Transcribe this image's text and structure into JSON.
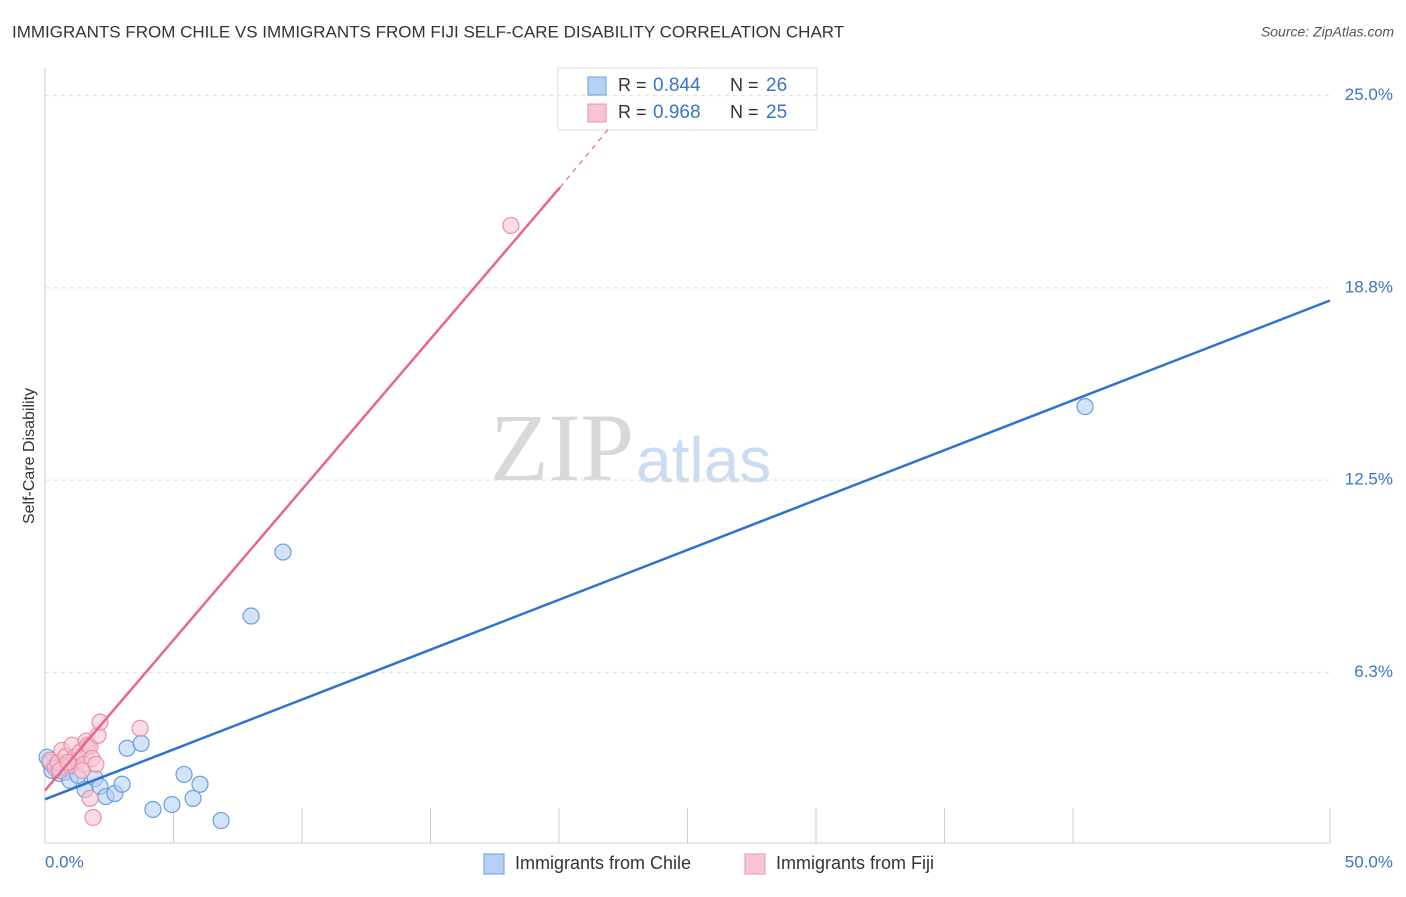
{
  "chart_data": {
    "type": "scatter",
    "title": "IMMIGRANTS FROM CHILE VS IMMIGRANTS FROM FIJI SELF-CARE DISABILITY CORRELATION CHART",
    "source": "Source: ZipAtlas.com",
    "y_label": "Self-Care Disability",
    "watermark": [
      "ZIP",
      "atlas"
    ],
    "xlim": [
      0,
      50
    ],
    "ylim": [
      0.7,
      25.9
    ],
    "xticks": [
      {
        "value": 0,
        "label": "0.0%"
      },
      {
        "value": 5,
        "label": null
      },
      {
        "value": 10,
        "label": null
      },
      {
        "value": 15,
        "label": null
      },
      {
        "value": 20,
        "label": null
      },
      {
        "value": 25,
        "label": null
      },
      {
        "value": 30,
        "label": null
      },
      {
        "value": 35,
        "label": null
      },
      {
        "value": 40,
        "label": null
      },
      {
        "value": 50,
        "label": "50.0%"
      }
    ],
    "yticks": [
      {
        "value": 6.25,
        "label": "6.3%"
      },
      {
        "value": 12.5,
        "label": "12.5%"
      },
      {
        "value": 18.75,
        "label": "18.8%"
      },
      {
        "value": 25,
        "label": "25.0%"
      }
    ],
    "grid": true,
    "legend_labels": [
      "R =",
      "N ="
    ],
    "series": [
      {
        "name": "Immigrants from Chile",
        "color": "#6a9ee0",
        "fill": "#b5d0f3",
        "line_color": "#2f72d0",
        "r": "0.844",
        "n": "26",
        "x": [
          0.08,
          0.27,
          0.39,
          0.58,
          0.78,
          0.97,
          1.28,
          1.56,
          1.95,
          2.14,
          2.37,
          2.72,
          3.0,
          3.19,
          3.74,
          4.2,
          4.94,
          5.41,
          5.76,
          6.03,
          6.85,
          8.02,
          9.26,
          40.47,
          0.19,
          0.51
        ],
        "values": [
          3.49,
          3.06,
          3.22,
          2.96,
          3.0,
          2.74,
          2.9,
          2.44,
          2.8,
          2.54,
          2.21,
          2.31,
          2.61,
          3.78,
          3.94,
          1.79,
          1.95,
          2.93,
          2.15,
          2.61,
          1.43,
          8.08,
          10.16,
          14.89,
          3.32,
          3.13
        ],
        "trend": {
          "x": [
            0,
            50
          ],
          "y": [
            2.12,
            18.34
          ]
        }
      },
      {
        "name": "Immigrants from Fiji",
        "color": "#e890aa",
        "fill": "#f8c3d2",
        "line_color": "#e8668e",
        "r": "0.968",
        "n": "25",
        "x": [
          0.19,
          0.39,
          0.51,
          0.66,
          0.82,
          0.97,
          1.05,
          1.17,
          1.28,
          1.36,
          1.52,
          1.6,
          1.67,
          1.75,
          1.83,
          1.98,
          2.06,
          2.14,
          1.75,
          1.87,
          3.7,
          18.13,
          0.58,
          0.89,
          1.44
        ],
        "values": [
          3.39,
          3.13,
          3.32,
          3.71,
          3.52,
          3.22,
          3.88,
          3.49,
          3.39,
          3.65,
          3.26,
          4.01,
          3.88,
          3.84,
          3.45,
          3.26,
          4.2,
          4.63,
          2.15,
          1.53,
          4.43,
          20.78,
          3.06,
          3.32,
          3.06
        ],
        "trend": {
          "x": [
            0,
            20.04,
            21.98
          ],
          "y": [
            2.41,
            22.02,
            23.97
          ]
        }
      }
    ]
  }
}
